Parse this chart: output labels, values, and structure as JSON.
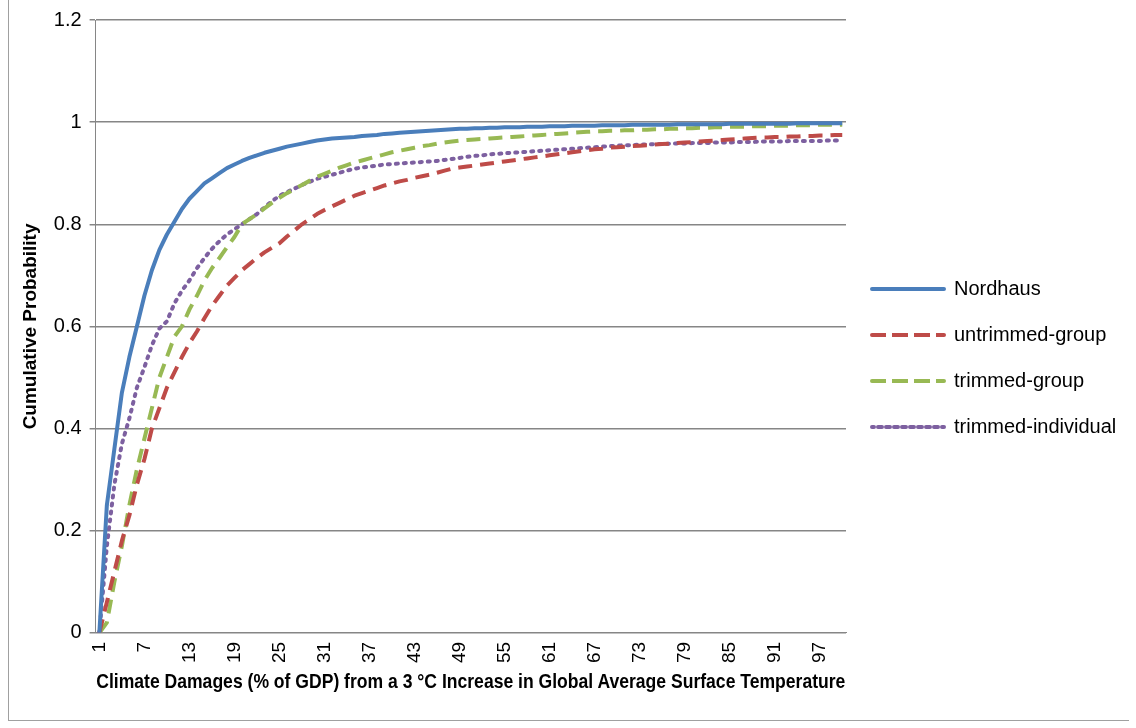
{
  "chart_data": {
    "type": "line",
    "xlabel": "Climate Damages (% of GDP) from a 3 °C Increase in Global Average Surface Temperature",
    "ylabel": "Cumulative Probability",
    "categories": [
      "1",
      null,
      null,
      null,
      null,
      null,
      "7",
      null,
      null,
      null,
      null,
      null,
      "13",
      null,
      null,
      null,
      null,
      null,
      "19",
      null,
      null,
      null,
      null,
      null,
      "25",
      null,
      null,
      null,
      null,
      null,
      "31",
      null,
      null,
      null,
      null,
      null,
      "37",
      null,
      null,
      null,
      null,
      null,
      "43",
      null,
      null,
      null,
      null,
      null,
      "49",
      null,
      null,
      null,
      null,
      null,
      "55",
      null,
      null,
      null,
      null,
      null,
      "61",
      null,
      null,
      null,
      null,
      null,
      "67",
      null,
      null,
      null,
      null,
      null,
      "73",
      null,
      null,
      null,
      null,
      null,
      "79",
      null,
      null,
      null,
      null,
      null,
      "85",
      null,
      null,
      null,
      null,
      null,
      "91",
      null,
      null,
      null,
      null,
      null,
      "97",
      null,
      null,
      null
    ],
    "ylim": [
      0,
      1.2
    ],
    "yticks": [
      0,
      0.2,
      0.4,
      0.6,
      0.8,
      1,
      1.2
    ],
    "grid": "y",
    "legend": "right",
    "marker": "none",
    "series": [
      {
        "name": "Nordhaus",
        "color": "#4a7ebb",
        "line_style": "solid",
        "values": [
          0,
          0.25,
          0.36,
          0.47,
          0.54,
          0.6,
          0.66,
          0.71,
          0.75,
          0.78,
          0.805,
          0.83,
          0.85,
          0.865,
          0.88,
          0.89,
          0.9,
          0.91,
          0.917,
          0.924,
          0.93,
          0.935,
          0.94,
          0.944,
          0.948,
          0.952,
          0.955,
          0.958,
          0.961,
          0.964,
          0.966,
          0.968,
          0.969,
          0.97,
          0.971,
          0.973,
          0.974,
          0.975,
          0.977,
          0.978,
          0.979,
          0.98,
          0.981,
          0.982,
          0.983,
          0.984,
          0.985,
          0.986,
          0.987,
          0.987,
          0.988,
          0.988,
          0.989,
          0.989,
          0.99,
          0.99,
          0.99,
          0.991,
          0.991,
          0.991,
          0.992,
          0.992,
          0.992,
          0.993,
          0.993,
          0.993,
          0.993,
          0.994,
          0.994,
          0.994,
          0.994,
          0.995,
          0.995,
          0.995,
          0.995,
          0.995,
          0.995,
          0.996,
          0.996,
          0.996,
          0.996,
          0.996,
          0.996,
          0.996,
          0.997,
          0.997,
          0.997,
          0.997,
          0.997,
          0.997,
          0.997,
          0.997,
          0.997,
          0.998,
          0.998,
          0.998,
          0.998,
          0.998,
          0.998,
          0.998
        ]
      },
      {
        "name": "untrimmed-group",
        "color": "#be4b48",
        "line_style": "dashed",
        "values": [
          0,
          0.06,
          0.12,
          0.18,
          0.23,
          0.29,
          0.34,
          0.4,
          0.44,
          0.48,
          0.51,
          0.54,
          0.567,
          0.59,
          0.616,
          0.64,
          0.66,
          0.68,
          0.695,
          0.71,
          0.722,
          0.734,
          0.745,
          0.754,
          0.763,
          0.776,
          0.788,
          0.8,
          0.81,
          0.82,
          0.828,
          0.835,
          0.842,
          0.849,
          0.856,
          0.861,
          0.866,
          0.871,
          0.876,
          0.88,
          0.884,
          0.887,
          0.891,
          0.894,
          0.897,
          0.901,
          0.905,
          0.909,
          0.911,
          0.913,
          0.915,
          0.917,
          0.919,
          0.921,
          0.923,
          0.925,
          0.927,
          0.929,
          0.931,
          0.933,
          0.935,
          0.937,
          0.939,
          0.941,
          0.943,
          0.945,
          0.947,
          0.948,
          0.95,
          0.951,
          0.952,
          0.953,
          0.954,
          0.955,
          0.956,
          0.957,
          0.958,
          0.959,
          0.96,
          0.961,
          0.962,
          0.963,
          0.964,
          0.965,
          0.966,
          0.967,
          0.968,
          0.969,
          0.97,
          0.97,
          0.971,
          0.971,
          0.972,
          0.972,
          0.973,
          0.973,
          0.974,
          0.974,
          0.975,
          0.975
        ]
      },
      {
        "name": "trimmed-group",
        "color": "#98b954",
        "line_style": "dashed",
        "values": [
          0,
          0.02,
          0.1,
          0.17,
          0.25,
          0.32,
          0.38,
          0.44,
          0.5,
          0.54,
          0.58,
          0.6,
          0.633,
          0.66,
          0.69,
          0.714,
          0.734,
          0.755,
          0.775,
          0.8,
          0.81,
          0.82,
          0.831,
          0.842,
          0.852,
          0.861,
          0.869,
          0.877,
          0.885,
          0.893,
          0.899,
          0.905,
          0.911,
          0.916,
          0.921,
          0.925,
          0.929,
          0.933,
          0.937,
          0.941,
          0.944,
          0.947,
          0.95,
          0.953,
          0.955,
          0.958,
          0.96,
          0.962,
          0.964,
          0.965,
          0.966,
          0.967,
          0.968,
          0.969,
          0.97,
          0.971,
          0.972,
          0.973,
          0.974,
          0.975,
          0.976,
          0.977,
          0.978,
          0.979,
          0.98,
          0.981,
          0.982,
          0.982,
          0.983,
          0.983,
          0.984,
          0.984,
          0.985,
          0.985,
          0.986,
          0.986,
          0.987,
          0.987,
          0.988,
          0.988,
          0.989,
          0.989,
          0.99,
          0.99,
          0.991,
          0.991,
          0.991,
          0.992,
          0.992,
          0.992,
          0.993,
          0.993,
          0.993,
          0.994,
          0.994,
          0.994,
          0.995,
          0.995,
          0.995,
          0.995
        ]
      },
      {
        "name": "trimmed-individual",
        "color": "#7d60a0",
        "line_style": "dotted",
        "values": [
          0,
          0.17,
          0.29,
          0.37,
          0.42,
          0.48,
          0.52,
          0.563,
          0.596,
          0.61,
          0.645,
          0.67,
          0.69,
          0.714,
          0.734,
          0.752,
          0.767,
          0.78,
          0.79,
          0.8,
          0.81,
          0.82,
          0.833,
          0.845,
          0.856,
          0.863,
          0.87,
          0.877,
          0.883,
          0.889,
          0.893,
          0.897,
          0.901,
          0.905,
          0.909,
          0.911,
          0.913,
          0.915,
          0.917,
          0.918,
          0.919,
          0.92,
          0.921,
          0.922,
          0.923,
          0.924,
          0.926,
          0.928,
          0.93,
          0.932,
          0.934,
          0.935,
          0.937,
          0.938,
          0.939,
          0.94,
          0.941,
          0.942,
          0.943,
          0.944,
          0.945,
          0.946,
          0.947,
          0.948,
          0.949,
          0.95,
          0.951,
          0.952,
          0.953,
          0.954,
          0.955,
          0.955,
          0.956,
          0.956,
          0.957,
          0.957,
          0.958,
          0.958,
          0.958,
          0.959,
          0.959,
          0.959,
          0.96,
          0.96,
          0.96,
          0.961,
          0.961,
          0.961,
          0.962,
          0.962,
          0.962,
          0.962,
          0.963,
          0.963,
          0.963,
          0.963,
          0.963,
          0.964,
          0.964,
          0.964
        ]
      }
    ]
  }
}
